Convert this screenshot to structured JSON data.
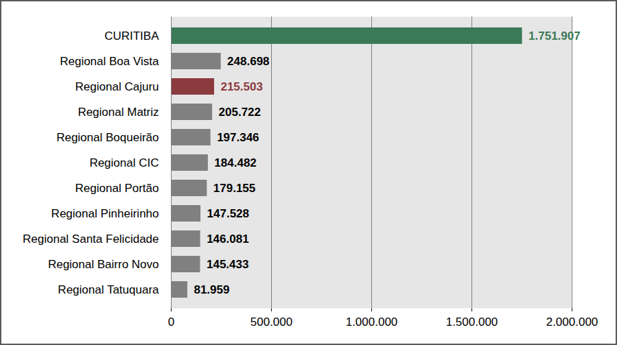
{
  "chart_data": {
    "type": "bar",
    "orientation": "horizontal",
    "categories": [
      "CURITIBA",
      "Regional Boa Vista",
      "Regional Cajuru",
      "Regional Matriz",
      "Regional Boqueirão",
      "Regional CIC",
      "Regional Portão",
      "Regional Pinheirinho",
      "Regional Santa Felicidade",
      "Regional Bairro Novo",
      "Regional Tatuquara"
    ],
    "values": [
      1751907,
      248698,
      215503,
      205722,
      197346,
      184482,
      179155,
      147528,
      146081,
      145433,
      81959
    ],
    "value_labels": [
      "1.751.907",
      "248.698",
      "215.503",
      "205.722",
      "197.346",
      "184.482",
      "179.155",
      "147.528",
      "146.081",
      "145.433",
      "81.959"
    ],
    "colors": [
      "#3b7a57",
      "#808080",
      "#8b3a3e",
      "#808080",
      "#808080",
      "#808080",
      "#808080",
      "#808080",
      "#808080",
      "#808080",
      "#808080"
    ],
    "xlim": [
      0,
      2000000
    ],
    "xticks": [
      0,
      {
        "value": 500000,
        "label": "500.000"
      },
      {
        "value": 1000000,
        "label": "1.000.000"
      },
      {
        "value": 1500000,
        "label": "1.500.000"
      },
      {
        "value": 2000000,
        "label": "2.000.000"
      }
    ],
    "grid": true,
    "data_labels": true
  }
}
